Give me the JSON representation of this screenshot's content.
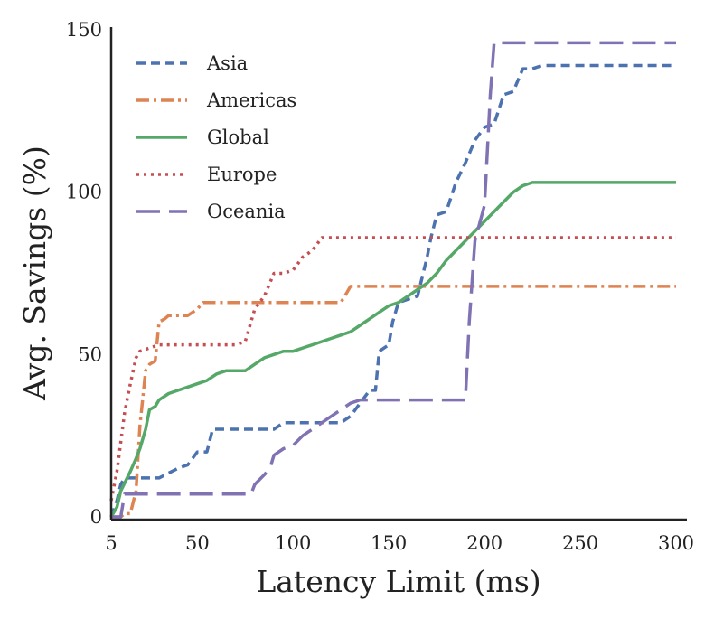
{
  "chart_data": {
    "type": "line",
    "title": "",
    "xlabel": "Latency Limit (ms)",
    "ylabel": "Avg. Savings (%)",
    "xlim": [
      5,
      300
    ],
    "ylim": [
      0,
      150
    ],
    "xticks": [
      5,
      50,
      100,
      150,
      200,
      250,
      300
    ],
    "yticks": [
      0,
      50,
      100,
      150
    ],
    "grid": false,
    "legend_position": "top-left",
    "series": [
      {
        "name": "Asia",
        "color": "#4c72b0",
        "style": "dashed",
        "x": [
          5,
          8,
          10,
          12,
          15,
          20,
          30,
          40,
          45,
          50,
          52,
          55,
          58,
          60,
          70,
          80,
          90,
          95,
          100,
          110,
          120,
          125,
          130,
          135,
          140,
          143,
          145,
          150,
          152,
          155,
          160,
          165,
          170,
          172,
          175,
          180,
          185,
          190,
          195,
          200,
          205,
          210,
          215,
          220,
          225,
          230,
          250,
          300
        ],
        "y": [
          0,
          5,
          10,
          12,
          12,
          12,
          12,
          15,
          16,
          20,
          20,
          20,
          27,
          27,
          27,
          27,
          27,
          29,
          29,
          29,
          29,
          29,
          31,
          35,
          39,
          39,
          51,
          53,
          60,
          66,
          67,
          68,
          80,
          86,
          93,
          94,
          103,
          109,
          116,
          120,
          121,
          130,
          131,
          138,
          138,
          139,
          139,
          139
        ]
      },
      {
        "name": "Americas",
        "color": "#dd8452",
        "style": "dashdot",
        "x": [
          5,
          8,
          10,
          12,
          15,
          18,
          20,
          23,
          25,
          28,
          30,
          33,
          35,
          40,
          45,
          50,
          53,
          55,
          60,
          70,
          80,
          90,
          100,
          110,
          120,
          125,
          128,
          130,
          140,
          150,
          160,
          170,
          180,
          200,
          250,
          300
        ],
        "y": [
          0,
          0,
          0,
          1,
          1,
          8,
          28,
          45,
          47,
          48,
          60,
          61,
          62,
          62,
          62,
          64,
          66,
          66,
          66,
          66,
          66,
          66,
          66,
          66,
          66,
          66,
          69,
          71,
          71,
          71,
          71,
          71,
          71,
          71,
          71,
          71
        ]
      },
      {
        "name": "Global",
        "color": "#55a868",
        "style": "solid",
        "x": [
          5,
          8,
          10,
          15,
          18,
          20,
          23,
          25,
          28,
          30,
          35,
          40,
          45,
          50,
          55,
          60,
          65,
          70,
          75,
          80,
          85,
          90,
          95,
          100,
          105,
          110,
          115,
          120,
          125,
          130,
          135,
          140,
          145,
          150,
          155,
          160,
          165,
          170,
          175,
          180,
          185,
          190,
          195,
          200,
          205,
          210,
          215,
          220,
          225,
          230,
          250,
          300
        ],
        "y": [
          0,
          3,
          8,
          14,
          18,
          21,
          27,
          33,
          34,
          36,
          38,
          39,
          40,
          41,
          42,
          44,
          45,
          45,
          45,
          47,
          49,
          50,
          51,
          51,
          52,
          53,
          54,
          55,
          56,
          57,
          59,
          61,
          63,
          65,
          66,
          68,
          70,
          72,
          75,
          79,
          82,
          85,
          88,
          91,
          94,
          97,
          100,
          102,
          103,
          103,
          103,
          103
        ]
      },
      {
        "name": "Europe",
        "color": "#c44e52",
        "style": "dotted",
        "x": [
          5,
          8,
          10,
          12,
          15,
          18,
          20,
          25,
          30,
          40,
          50,
          60,
          70,
          75,
          80,
          85,
          90,
          95,
          100,
          105,
          110,
          115,
          120,
          150,
          200,
          250,
          300
        ],
        "y": [
          5,
          14,
          23,
          32,
          41,
          49,
          51,
          52,
          53,
          53,
          53,
          53,
          53,
          54,
          64,
          68,
          75,
          75,
          76,
          80,
          82,
          86,
          86,
          86,
          86,
          86,
          86
        ]
      },
      {
        "name": "Oceania",
        "color": "#8172b3",
        "style": "longdash",
        "x": [
          5,
          10,
          12,
          15,
          20,
          40,
          60,
          78,
          80,
          85,
          88,
          90,
          95,
          100,
          105,
          110,
          115,
          120,
          125,
          130,
          135,
          140,
          150,
          160,
          170,
          185,
          190,
          192,
          195,
          200,
          203,
          205,
          210,
          220,
          250,
          300
        ],
        "y": [
          0,
          0,
          7,
          7,
          7,
          7,
          7,
          7,
          10,
          13,
          15,
          19,
          21,
          22,
          25,
          27,
          29,
          31,
          33,
          35,
          36,
          36,
          36,
          36,
          36,
          36,
          36,
          60,
          85,
          96,
          130,
          146,
          146,
          146,
          146,
          146
        ]
      }
    ]
  }
}
